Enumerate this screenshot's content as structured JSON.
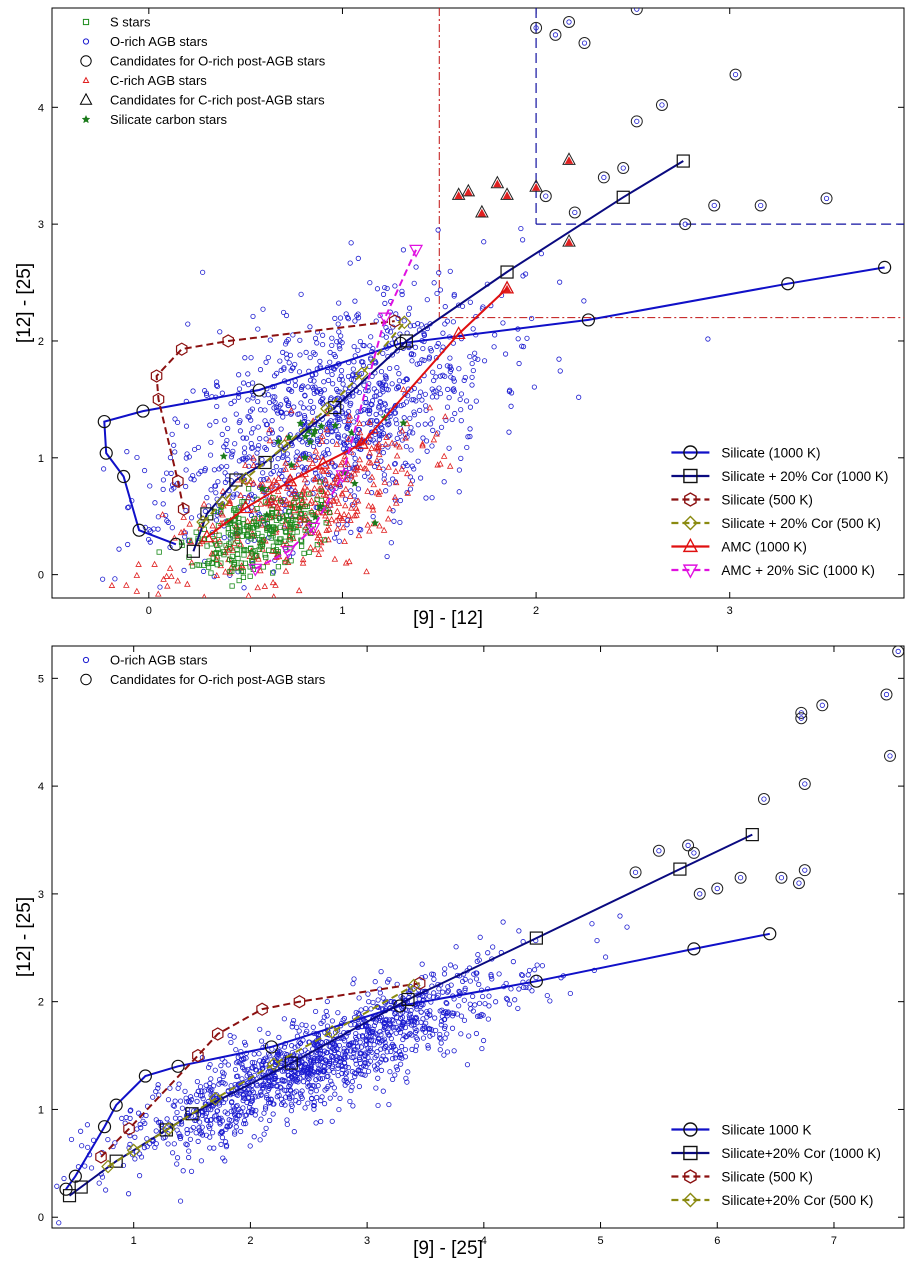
{
  "chart_data": [
    {
      "type": "scatter",
      "xlabel": "[9] - [12]",
      "ylabel": "[12] - [25]",
      "xlim": [
        -0.5,
        3.9
      ],
      "ylim": [
        -0.2,
        4.85
      ],
      "xticks": [
        0,
        1,
        2,
        3
      ],
      "yticks": [
        0,
        1,
        2,
        3,
        4
      ],
      "legend_scatter_position": "top-left",
      "legend_models_position": "bottom-right",
      "scatter_legend": [
        {
          "label": "S stars",
          "marker": "square",
          "color": "#1a8a1a"
        },
        {
          "label": "O-rich AGB stars",
          "marker": "circle",
          "color": "#1a1ad0"
        },
        {
          "label": "Candidates for O-rich post-AGB stars",
          "marker": "circle-big",
          "color": "#000000"
        },
        {
          "label": "C-rich AGB stars",
          "marker": "triangle",
          "color": "#e02020"
        },
        {
          "label": "Candidates for C-rich post-AGB stars",
          "marker": "triangle-big",
          "color": "#000000"
        },
        {
          "label": "Silicate carbon stars",
          "marker": "star",
          "color": "#1a7a1a"
        }
      ],
      "clouds": [
        {
          "name": "O-rich AGB stars",
          "color": "#1a1ad0",
          "marker": "circle",
          "count": 1100,
          "cx": 0.95,
          "cy": 1.35,
          "sx": 0.42,
          "sy": 0.55,
          "rho": 0.55,
          "seed": 11
        },
        {
          "name": "C-rich AGB stars",
          "color": "#e02020",
          "marker": "triangle",
          "count": 420,
          "cx": 0.75,
          "cy": 0.55,
          "sx": 0.32,
          "sy": 0.35,
          "rho": 0.6,
          "seed": 23
        },
        {
          "name": "S stars",
          "color": "#1a8a1a",
          "marker": "square",
          "count": 260,
          "cx": 0.55,
          "cy": 0.35,
          "sx": 0.16,
          "sy": 0.18,
          "rho": 0.4,
          "seed": 37
        },
        {
          "name": "Silicate carbon stars",
          "color": "#1a7a1a",
          "marker": "star",
          "count": 25,
          "cx": 0.85,
          "cy": 0.95,
          "sx": 0.28,
          "sy": 0.35,
          "rho": 0.5,
          "seed": 41
        }
      ],
      "o_postagb": {
        "x": [
          2.0,
          2.1,
          2.17,
          2.25,
          2.52,
          2.45,
          2.65,
          3.03,
          2.52,
          2.35,
          2.05,
          2.2,
          2.92,
          3.16,
          3.5,
          2.77
        ],
        "y": [
          4.68,
          4.62,
          4.73,
          4.55,
          4.84,
          3.48,
          4.02,
          4.28,
          3.88,
          3.4,
          3.24,
          3.1,
          3.16,
          3.16,
          3.22,
          3.0
        ]
      },
      "c_postagb": {
        "x": [
          2.17,
          2.0,
          1.65,
          1.72,
          1.8,
          1.85,
          1.6,
          2.17,
          1.85
        ],
        "y": [
          3.55,
          3.32,
          3.28,
          3.1,
          3.35,
          3.25,
          3.25,
          2.85,
          2.45
        ]
      },
      "boxes": {
        "red_vertical_x": 1.5,
        "red_horizontal_y": 2.2,
        "blue_vertical_x": 2.0,
        "blue_horizontal_y": 3.0
      },
      "model_legend": [
        {
          "label": "Silicate (1000 K)",
          "color": "#1010c8",
          "marker": "circle",
          "dash": "solid"
        },
        {
          "label": "Silicate + 20% Cor (1000 K)",
          "color": "#0a0a80",
          "marker": "square",
          "dash": "solid"
        },
        {
          "label": "Silicate (500 K)",
          "color": "#8b1010",
          "marker": "hexagon",
          "dash": "dashed"
        },
        {
          "label": "Silicate + 20% Cor (500 K)",
          "color": "#8a8a10",
          "marker": "diamond",
          "dash": "dashed"
        },
        {
          "label": "AMC (1000 K)",
          "color": "#e01010",
          "marker": "triangle",
          "dash": "solid"
        },
        {
          "label": "AMC + 20% SiC (1000 K)",
          "color": "#e010e0",
          "marker": "triangle-down",
          "dash": "dashed"
        }
      ],
      "series": [
        {
          "name": "Silicate (1000 K)",
          "x": [
            0.14,
            -0.05,
            -0.13,
            -0.22,
            -0.23,
            -0.03,
            0.57,
            1.3,
            2.27,
            3.3,
            3.8
          ],
          "y": [
            0.26,
            0.38,
            0.84,
            1.04,
            1.31,
            1.4,
            1.58,
            1.98,
            2.18,
            2.49,
            2.63
          ]
        },
        {
          "name": "Silicate + 20% Cor (1000 K)",
          "x": [
            0.23,
            0.3,
            0.45,
            0.6,
            0.96,
            1.33,
            1.85,
            2.45,
            2.76
          ],
          "y": [
            0.2,
            0.52,
            0.81,
            0.96,
            1.43,
            2.0,
            2.59,
            3.23,
            3.54
          ]
        },
        {
          "name": "Silicate (500 K)",
          "x": [
            0.18,
            0.15,
            0.05,
            0.04,
            0.17,
            0.41,
            1.27
          ],
          "y": [
            0.56,
            0.8,
            1.5,
            1.7,
            1.93,
            2.0,
            2.17
          ]
        },
        {
          "name": "Silicate + 20% Cor (500 K)",
          "x": [
            0.28,
            0.38,
            0.5,
            0.7,
            0.92,
            1.1,
            1.32
          ],
          "y": [
            0.45,
            0.62,
            0.82,
            1.1,
            1.42,
            1.72,
            2.16
          ]
        },
        {
          "name": "AMC (1000 K)",
          "x": [
            0.3,
            0.5,
            0.73,
            0.9,
            1.1,
            1.6,
            1.85
          ],
          "y": [
            0.32,
            0.57,
            0.8,
            0.95,
            1.12,
            2.06,
            2.45
          ]
        },
        {
          "name": "AMC + 20% SiC (1000 K)",
          "x": [
            0.55,
            0.72,
            0.85,
            1.0,
            1.22,
            1.38
          ],
          "y": [
            0.05,
            0.2,
            0.4,
            0.85,
            2.2,
            2.78
          ]
        }
      ]
    },
    {
      "type": "scatter",
      "xlabel": "[9] - [25]",
      "ylabel": "[12] - [25]",
      "xlim": [
        0.3,
        7.6
      ],
      "ylim": [
        -0.1,
        5.3
      ],
      "xticks": [
        1,
        2,
        3,
        4,
        5,
        6,
        7
      ],
      "yticks": [
        0,
        1,
        2,
        3,
        4,
        5
      ],
      "legend_scatter_position": "top-left",
      "legend_models_position": "bottom-right",
      "scatter_legend": [
        {
          "label": "O-rich AGB stars",
          "marker": "circle",
          "color": "#1a1ad0"
        },
        {
          "label": "Candidates for O-rich post-AGB stars",
          "marker": "circle-big",
          "color": "#000000"
        }
      ],
      "clouds": [
        {
          "name": "O-rich AGB stars",
          "color": "#1a1ad0",
          "marker": "circle",
          "count": 1400,
          "cx": 2.6,
          "cy": 1.45,
          "sx": 0.85,
          "sy": 0.45,
          "rho": 0.88,
          "seed": 53
        }
      ],
      "o_postagb": {
        "x": [
          5.3,
          5.5,
          5.75,
          5.85,
          6.0,
          6.4,
          6.2,
          6.55,
          6.75,
          6.72,
          6.9,
          6.75,
          6.72,
          7.45,
          7.48,
          7.55,
          5.8,
          6.7
        ],
        "y": [
          3.2,
          3.4,
          3.45,
          3.0,
          3.05,
          3.88,
          3.15,
          3.15,
          4.02,
          4.68,
          4.75,
          3.22,
          4.63,
          4.85,
          4.28,
          5.25,
          3.38,
          3.1
        ]
      },
      "model_legend": [
        {
          "label": "Silicate 1000 K",
          "color": "#1010c8",
          "marker": "circle",
          "dash": "solid"
        },
        {
          "label": "Silicate+20% Cor (1000 K)",
          "color": "#0a0a80",
          "marker": "square",
          "dash": "solid"
        },
        {
          "label": "Silicate (500 K)",
          "color": "#8b1010",
          "marker": "hexagon",
          "dash": "dashed"
        },
        {
          "label": "Silicate+20% Cor (500 K)",
          "color": "#8a8a10",
          "marker": "diamond",
          "dash": "dashed"
        }
      ],
      "series": [
        {
          "name": "Silicate 1000 K",
          "x": [
            0.42,
            0.5,
            0.75,
            0.85,
            1.1,
            1.38,
            2.18,
            3.28,
            4.45,
            5.8,
            6.45
          ],
          "y": [
            0.26,
            0.38,
            0.84,
            1.04,
            1.31,
            1.4,
            1.58,
            1.96,
            2.19,
            2.49,
            2.63
          ]
        },
        {
          "name": "Silicate+20% Cor (1000 K)",
          "x": [
            0.45,
            0.55,
            0.85,
            1.28,
            1.5,
            2.35,
            3.35,
            4.45,
            5.68,
            6.3
          ],
          "y": [
            0.2,
            0.28,
            0.52,
            0.81,
            0.96,
            1.43,
            2.02,
            2.59,
            3.23,
            3.55
          ]
        },
        {
          "name": "Silicate (500 K)",
          "x": [
            0.72,
            0.96,
            1.55,
            1.72,
            2.1,
            2.42,
            3.45
          ],
          "y": [
            0.56,
            0.82,
            1.5,
            1.7,
            1.93,
            2.0,
            2.17
          ]
        },
        {
          "name": "Silicate+20% Cor (500 K)",
          "x": [
            0.78,
            1.0,
            1.3,
            1.7,
            2.2,
            2.7,
            3.4
          ],
          "y": [
            0.47,
            0.62,
            0.82,
            1.1,
            1.42,
            1.72,
            2.15
          ]
        }
      ]
    }
  ]
}
